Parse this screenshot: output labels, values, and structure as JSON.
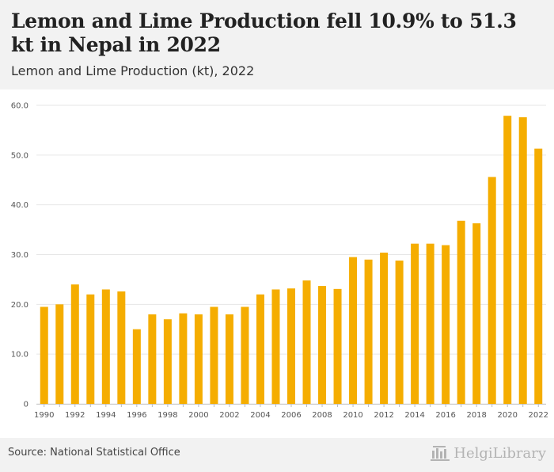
{
  "header": {
    "title": "Lemon and Lime Production fell 10.9% to 51.3 kt in Nepal in 2022",
    "subtitle": "Lemon and Lime Production (kt), 2022"
  },
  "footer": {
    "source": "Source: National Statistical Office",
    "logo_text": "HelgiLibrary"
  },
  "colors": {
    "bar": "#f5ad00",
    "grid": "#e6e6e6",
    "header_bg": "#f2f2f2"
  },
  "chart_data": {
    "type": "bar",
    "title": "Lemon and Lime Production (kt), 2022",
    "xlabel": "",
    "ylabel": "",
    "ylim": [
      0,
      60
    ],
    "yticks": [
      "0",
      "10.0",
      "20.0",
      "30.0",
      "40.0",
      "50.0",
      "60.0"
    ],
    "grid": true,
    "categories": [
      "1990",
      "1991",
      "1992",
      "1993",
      "1994",
      "1995",
      "1996",
      "1997",
      "1998",
      "1999",
      "2000",
      "2001",
      "2002",
      "2003",
      "2004",
      "2005",
      "2006",
      "2007",
      "2008",
      "2009",
      "2010",
      "2011",
      "2012",
      "2013",
      "2014",
      "2015",
      "2016",
      "2017",
      "2018",
      "2019",
      "2020",
      "2021",
      "2022"
    ],
    "xtick_labels": [
      "1990",
      "",
      "1992",
      "",
      "1994",
      "",
      "1996",
      "",
      "1998",
      "",
      "2000",
      "",
      "2002",
      "",
      "2004",
      "",
      "2006",
      "",
      "2008",
      "",
      "2010",
      "",
      "2012",
      "",
      "2014",
      "",
      "2016",
      "",
      "2018",
      "",
      "2020",
      "",
      "2022"
    ],
    "values": [
      19.5,
      20.0,
      24.0,
      22.0,
      23.0,
      22.6,
      15.0,
      18.0,
      17.0,
      18.2,
      18.0,
      19.5,
      18.0,
      19.5,
      22.0,
      23.0,
      23.2,
      24.8,
      23.7,
      23.1,
      29.5,
      29.0,
      30.4,
      28.8,
      32.2,
      32.2,
      31.9,
      36.8,
      36.3,
      45.6,
      57.9,
      57.6,
      51.3
    ]
  }
}
